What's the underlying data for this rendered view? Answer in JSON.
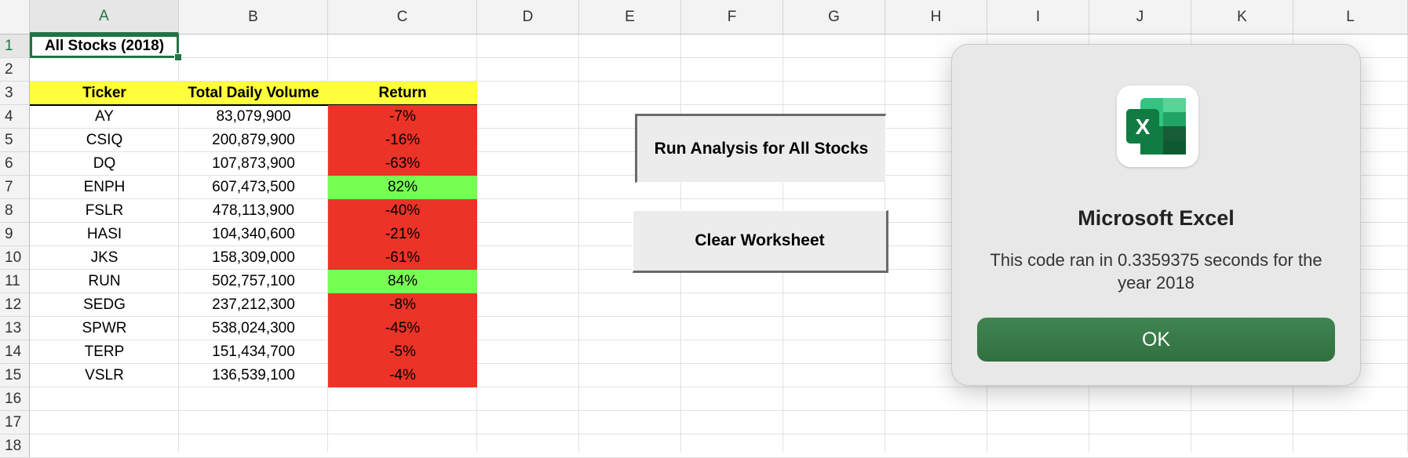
{
  "columns": [
    "A",
    "B",
    "C",
    "D",
    "E",
    "F",
    "G",
    "H",
    "I",
    "J",
    "K",
    "L"
  ],
  "rows": [
    "1",
    "2",
    "3",
    "4",
    "5",
    "6",
    "7",
    "8",
    "9",
    "10",
    "11",
    "12",
    "13",
    "14",
    "15",
    "16",
    "17",
    "18"
  ],
  "sheet": {
    "title": "All Stocks (2018)",
    "headers": {
      "ticker": "Ticker",
      "volume": "Total Daily Volume",
      "return": "Return"
    },
    "data": [
      {
        "ticker": "AY",
        "volume": "83,079,900",
        "return": "-7%",
        "status": "negative"
      },
      {
        "ticker": "CSIQ",
        "volume": "200,879,900",
        "return": "-16%",
        "status": "negative"
      },
      {
        "ticker": "DQ",
        "volume": "107,873,900",
        "return": "-63%",
        "status": "negative"
      },
      {
        "ticker": "ENPH",
        "volume": "607,473,500",
        "return": "82%",
        "status": "positive"
      },
      {
        "ticker": "FSLR",
        "volume": "478,113,900",
        "return": "-40%",
        "status": "negative"
      },
      {
        "ticker": "HASI",
        "volume": "104,340,600",
        "return": "-21%",
        "status": "negative"
      },
      {
        "ticker": "JKS",
        "volume": "158,309,000",
        "return": "-61%",
        "status": "negative"
      },
      {
        "ticker": "RUN",
        "volume": "502,757,100",
        "return": "84%",
        "status": "positive"
      },
      {
        "ticker": "SEDG",
        "volume": "237,212,300",
        "return": "-8%",
        "status": "negative"
      },
      {
        "ticker": "SPWR",
        "volume": "538,024,300",
        "return": "-45%",
        "status": "negative"
      },
      {
        "ticker": "TERP",
        "volume": "151,434,700",
        "return": "-5%",
        "status": "negative"
      },
      {
        "ticker": "VSLR",
        "volume": "136,539,100",
        "return": "-4%",
        "status": "negative"
      }
    ]
  },
  "buttons": {
    "run_label": "Run Analysis for All Stocks",
    "clear_label": "Clear Worksheet"
  },
  "dialog": {
    "app_icon": "excel-icon",
    "app_icon_letter": "X",
    "title": "Microsoft Excel",
    "message": "This code ran in 0.3359375 seconds for the year 2018",
    "ok_label": "OK"
  },
  "colors": {
    "header_fill": "#ffff3c",
    "negative_fill": "#ec3327",
    "positive_fill": "#76ff52",
    "excel_green": "#217346",
    "ok_button": "#3a7a4a"
  }
}
